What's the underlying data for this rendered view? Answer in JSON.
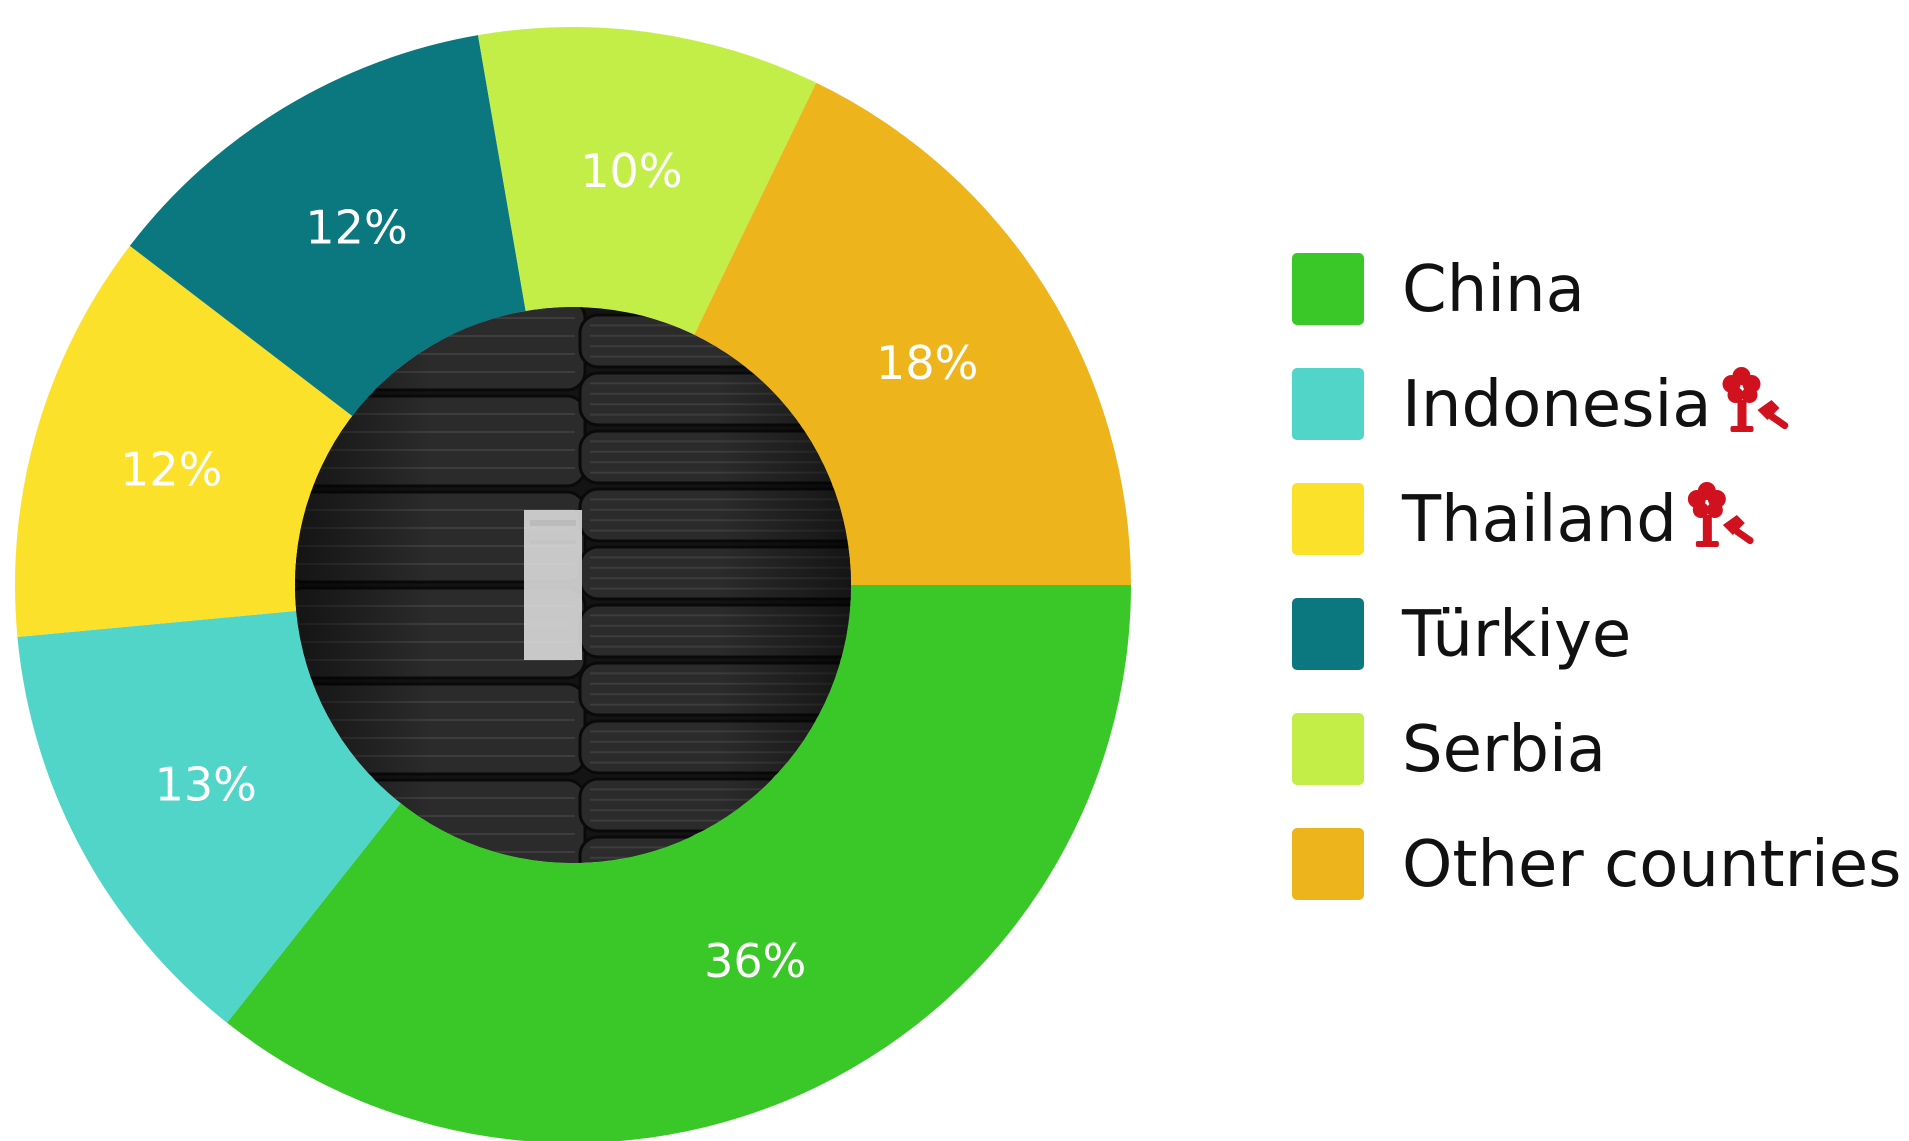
{
  "chart_data": {
    "type": "pie",
    "variant": "donut",
    "title": "",
    "legend_placement": "right",
    "slices": [
      {
        "label": "China",
        "value": 36,
        "display": "36%",
        "color": "#3ac828"
      },
      {
        "label": "Indonesia",
        "value": 13,
        "display": "13%",
        "color": "#50d5c8",
        "icon": "deforestation-icon"
      },
      {
        "label": "Thailand",
        "value": 12,
        "display": "12%",
        "color": "#fbe12a",
        "icon": "deforestation-icon"
      },
      {
        "label": "Türkiye",
        "value": 12,
        "display": "12%",
        "color": "#0b7880"
      },
      {
        "label": "Serbia",
        "value": 10,
        "display": "10%",
        "color": "#c3ee48"
      },
      {
        "label": "Other countries",
        "value": 18,
        "display": "18%",
        "color": "#edb41c"
      }
    ],
    "center_image": "tire-stacks-photo",
    "icon_color": "#d0121e"
  }
}
